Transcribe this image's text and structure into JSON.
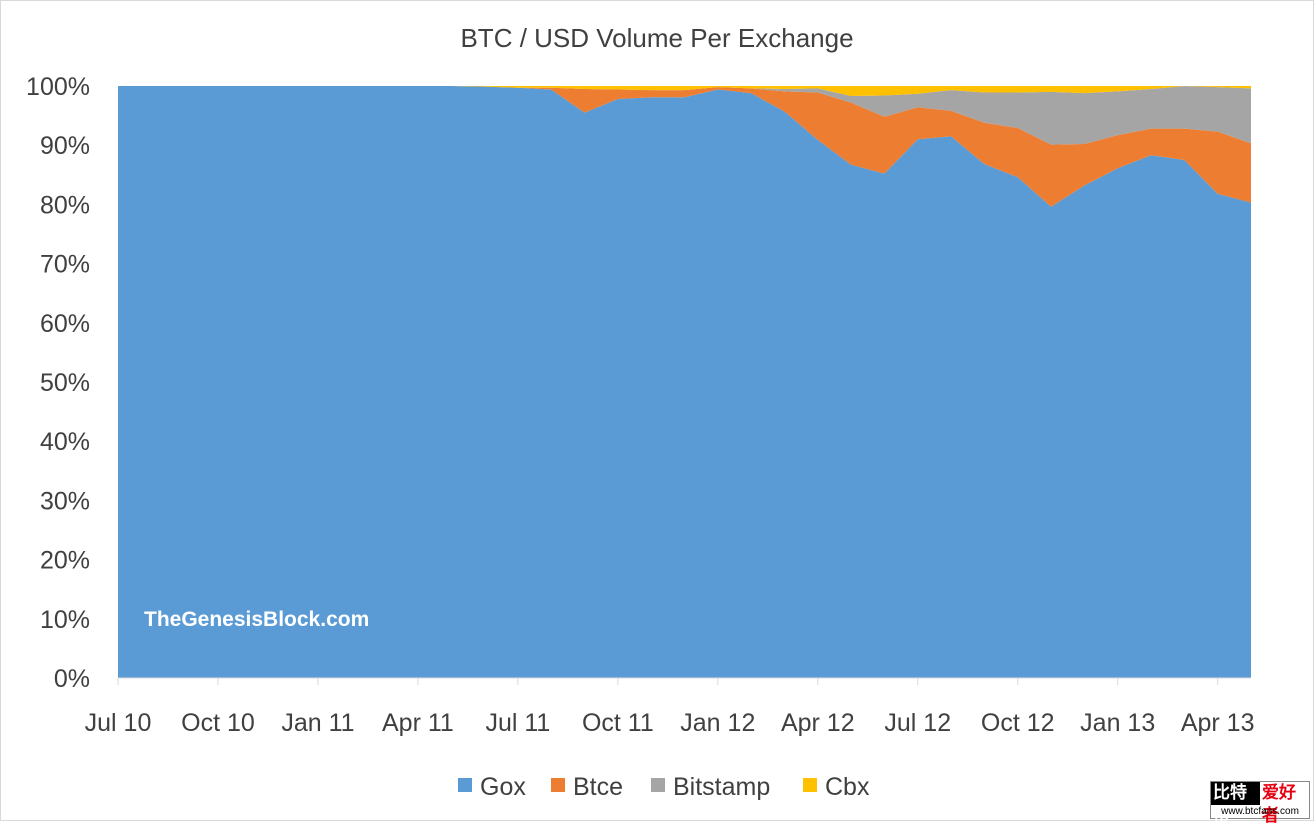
{
  "chart_data": {
    "type": "area",
    "stacked": "percent",
    "title": "BTC / USD Volume Per Exchange",
    "xlabel": "",
    "ylabel": "",
    "ylim": [
      0,
      100
    ],
    "y_tick_labels": [
      "0%",
      "10%",
      "20%",
      "30%",
      "40%",
      "50%",
      "60%",
      "70%",
      "80%",
      "90%",
      "100%"
    ],
    "x_tick_labels": [
      "Jul 10",
      "Oct 10",
      "Jan 11",
      "Apr 11",
      "Jul 11",
      "Oct 11",
      "Jan 12",
      "Apr 12",
      "Jul 12",
      "Oct 12",
      "Jan 13",
      "Apr 13"
    ],
    "x": [
      "Jul 10",
      "Aug 10",
      "Sep 10",
      "Oct 10",
      "Nov 10",
      "Dec 10",
      "Jan 11",
      "Feb 11",
      "Mar 11",
      "Apr 11",
      "May 11",
      "Jun 11",
      "Jul 11",
      "Aug 11",
      "Sep 11",
      "Oct 11",
      "Nov 11",
      "Dec 11",
      "Jan 12",
      "Feb 12",
      "Mar 12",
      "Apr 12",
      "May 12",
      "Jun 12",
      "Jul 12",
      "Aug 12",
      "Sep 12",
      "Oct 12",
      "Nov 12",
      "Dec 12",
      "Jan 13",
      "Feb 13",
      "Mar 13",
      "Apr 13",
      "May 13"
    ],
    "series": [
      {
        "name": "Gox",
        "color": "#5b9bd5",
        "values": [
          100,
          100,
          100,
          100,
          100,
          100,
          100,
          100,
          100,
          100,
          100,
          99.9,
          99.7,
          99.4,
          95.5,
          97.8,
          98.1,
          98.1,
          99.4,
          98.8,
          95.7,
          90.9,
          86.7,
          85.2,
          91.0,
          91.5,
          86.8,
          84.6,
          79.6,
          83.2,
          86.1,
          88.3,
          87.5,
          81.8,
          80.3
        ]
      },
      {
        "name": "Btce",
        "color": "#ed7d31",
        "values": [
          0,
          0,
          0,
          0,
          0,
          0,
          0,
          0,
          0,
          0,
          0,
          0,
          0,
          0.3,
          4.0,
          1.6,
          1.2,
          1.2,
          0.4,
          0.8,
          3.4,
          8.0,
          10.5,
          9.6,
          5.4,
          4.3,
          7.0,
          8.3,
          10.5,
          7.0,
          5.6,
          4.5,
          5.3,
          10.5,
          10.0
        ]
      },
      {
        "name": "Bitstamp",
        "color": "#a5a5a5",
        "values": [
          0,
          0,
          0,
          0,
          0,
          0,
          0,
          0,
          0,
          0,
          0,
          0,
          0,
          0,
          0,
          0,
          0,
          0,
          0,
          0,
          0.4,
          0.7,
          1.1,
          3.6,
          2.3,
          3.5,
          5.1,
          6.0,
          8.9,
          8.6,
          7.4,
          6.7,
          7.2,
          7.5,
          9.3
        ]
      },
      {
        "name": "Cbx",
        "color": "#ffc000",
        "values": [
          0,
          0,
          0,
          0,
          0,
          0,
          0,
          0,
          0,
          0,
          0,
          0.1,
          0.3,
          0.3,
          0.5,
          0.6,
          0.7,
          0.7,
          0.2,
          0.4,
          0.5,
          0.4,
          1.7,
          1.6,
          1.3,
          0.7,
          1.1,
          1.1,
          1.0,
          1.2,
          0.9,
          0.5,
          0,
          0.2,
          0.4
        ]
      }
    ],
    "grid": false,
    "legend_position": "bottom"
  },
  "watermark": "TheGenesisBlock.com",
  "badge": {
    "left": "比特币",
    "right": "爱好者",
    "url": "www.btcfans.com"
  }
}
